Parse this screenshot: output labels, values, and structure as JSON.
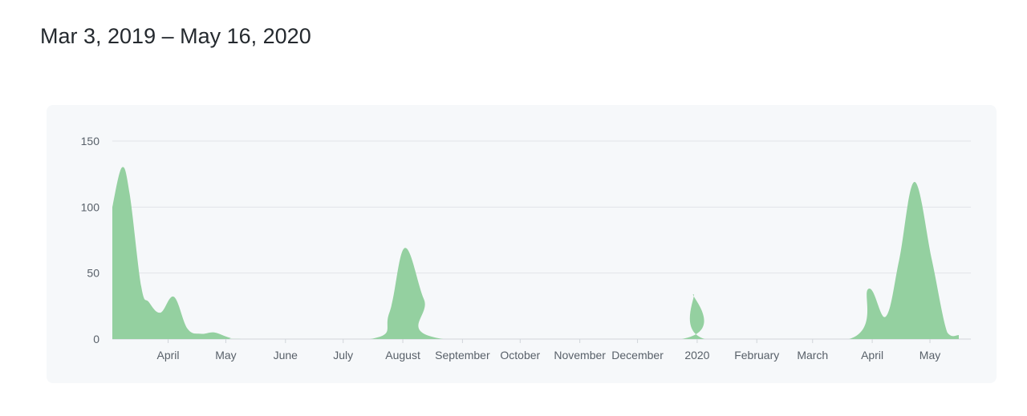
{
  "header": {
    "date_range": "Mar 3, 2019 – May 16, 2020"
  },
  "chart_data": {
    "type": "area",
    "title": "",
    "xlabel": "",
    "ylabel": "",
    "ylim": [
      0,
      150
    ],
    "y_ticks": [
      0,
      50,
      100,
      150
    ],
    "x_ticks": [
      {
        "label": "April",
        "date": "2019-04-01"
      },
      {
        "label": "May",
        "date": "2019-05-01"
      },
      {
        "label": "June",
        "date": "2019-06-01"
      },
      {
        "label": "July",
        "date": "2019-07-01"
      },
      {
        "label": "August",
        "date": "2019-08-01"
      },
      {
        "label": "September",
        "date": "2019-09-01"
      },
      {
        "label": "October",
        "date": "2019-10-01"
      },
      {
        "label": "November",
        "date": "2019-11-01"
      },
      {
        "label": "December",
        "date": "2019-12-01"
      },
      {
        "label": "2020",
        "date": "2020-01-01"
      },
      {
        "label": "February",
        "date": "2020-02-01"
      },
      {
        "label": "March",
        "date": "2020-03-01"
      },
      {
        "label": "April",
        "date": "2020-04-01"
      },
      {
        "label": "May",
        "date": "2020-05-01"
      }
    ],
    "x_range": [
      "2019-03-03",
      "2020-05-16"
    ],
    "grid": true,
    "fill_color": "#94d0a0",
    "points": [
      {
        "x": "2019-03-03",
        "y": 100
      },
      {
        "x": "2019-03-08",
        "y": 130
      },
      {
        "x": "2019-03-12",
        "y": 110
      },
      {
        "x": "2019-03-18",
        "y": 40
      },
      {
        "x": "2019-03-22",
        "y": 28
      },
      {
        "x": "2019-03-28",
        "y": 20
      },
      {
        "x": "2019-04-04",
        "y": 32
      },
      {
        "x": "2019-04-11",
        "y": 8
      },
      {
        "x": "2019-04-18",
        "y": 4
      },
      {
        "x": "2019-04-25",
        "y": 5
      },
      {
        "x": "2019-05-03",
        "y": 1
      },
      {
        "x": "2019-05-10",
        "y": 0
      },
      {
        "x": "2019-07-15",
        "y": 0
      },
      {
        "x": "2019-07-25",
        "y": 20
      },
      {
        "x": "2019-08-02",
        "y": 69
      },
      {
        "x": "2019-08-12",
        "y": 30
      },
      {
        "x": "2019-08-22",
        "y": 0
      },
      {
        "x": "2019-12-24",
        "y": 0
      },
      {
        "x": "2019-12-30",
        "y": 34
      },
      {
        "x": "2020-01-05",
        "y": 0
      },
      {
        "x": "2020-03-20",
        "y": 0
      },
      {
        "x": "2020-03-30",
        "y": 38
      },
      {
        "x": "2020-04-08",
        "y": 17
      },
      {
        "x": "2020-04-15",
        "y": 60
      },
      {
        "x": "2020-04-23",
        "y": 119
      },
      {
        "x": "2020-05-02",
        "y": 60
      },
      {
        "x": "2020-05-10",
        "y": 5
      },
      {
        "x": "2020-05-16",
        "y": 3
      }
    ]
  }
}
